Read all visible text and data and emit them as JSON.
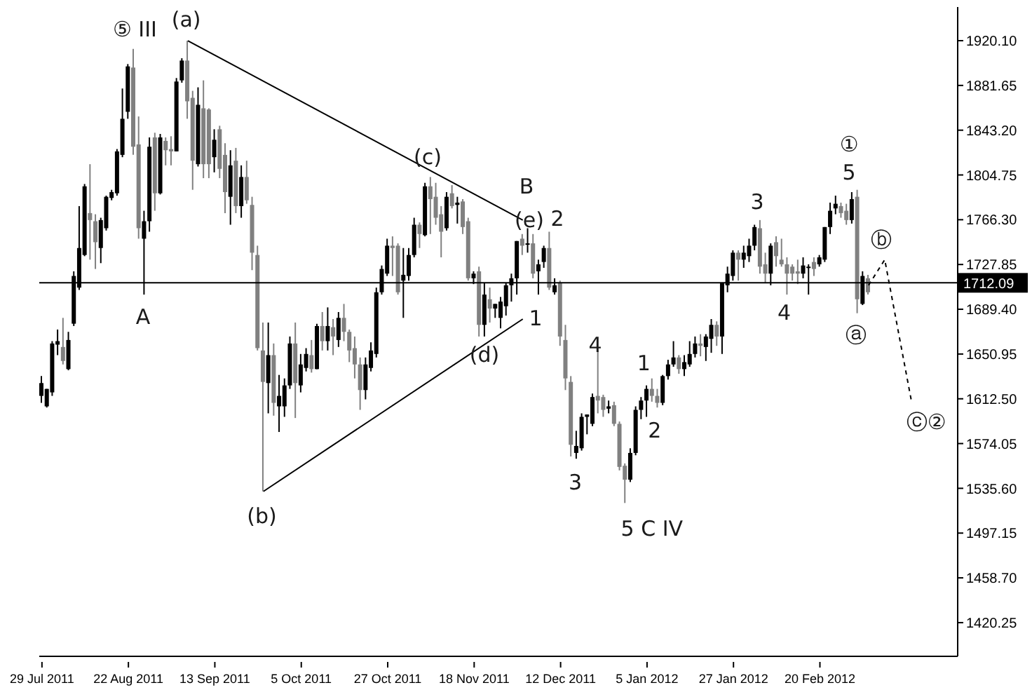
{
  "chart_data": {
    "type": "candlestick",
    "categories": [
      "29 Jul 2011",
      null,
      null,
      null,
      null,
      null,
      null,
      null,
      null,
      null,
      null,
      null,
      null,
      null,
      null,
      null,
      "22 Aug 2011",
      null,
      null,
      null,
      null,
      null,
      null,
      null,
      null,
      null,
      null,
      null,
      null,
      null,
      null,
      null,
      "13 Sep 2011",
      null,
      null,
      null,
      null,
      null,
      null,
      null,
      null,
      null,
      null,
      null,
      null,
      null,
      null,
      null,
      "5 Oct 2011",
      null,
      null,
      null,
      null,
      null,
      null,
      null,
      null,
      null,
      null,
      null,
      null,
      null,
      null,
      null,
      "27 Oct 2011",
      null,
      null,
      null,
      null,
      null,
      null,
      null,
      null,
      null,
      null,
      null,
      null,
      null,
      null,
      null,
      "18 Nov 2011",
      null,
      null,
      null,
      null,
      null,
      null,
      null,
      null,
      null,
      null,
      null,
      null,
      null,
      null,
      null,
      "12 Dec 2011",
      null,
      null,
      null,
      null,
      null,
      null,
      null,
      null,
      null,
      null,
      null,
      null,
      null,
      null,
      null,
      "5 Jan 2012",
      null,
      null,
      null,
      null,
      null,
      null,
      null,
      null,
      null,
      null,
      null,
      null,
      null,
      null,
      null,
      "27 Jan 2012",
      null,
      null,
      null,
      null,
      null,
      null,
      null,
      null,
      null,
      null,
      null,
      null,
      null,
      null,
      null,
      "20 Feb 2012",
      null,
      null,
      null,
      null,
      null,
      null,
      null,
      null,
      null,
      null,
      null,
      null,
      null,
      null,
      null,
      null,
      null,
      null,
      null,
      null,
      null,
      null,
      null,
      null,
      null
    ],
    "ohlc": [
      [
        1615,
        1632,
        1609,
        1626
      ],
      [
        1606,
        1621,
        1605,
        1621
      ],
      [
        1618,
        1662,
        1615,
        1660
      ],
      [
        1659,
        1672,
        1650,
        1662
      ],
      [
        1657,
        1682,
        1642,
        1645
      ],
      [
        1638,
        1670,
        1637,
        1663
      ],
      [
        1677,
        1722,
        1675,
        1718
      ],
      [
        1708,
        1778,
        1706,
        1742
      ],
      [
        1736,
        1797,
        1735,
        1795
      ],
      [
        1772,
        1814,
        1732,
        1766
      ],
      [
        1765,
        1771,
        1724,
        1747
      ],
      [
        1742,
        1768,
        1729,
        1766
      ],
      [
        1759,
        1787,
        1757,
        1786
      ],
      [
        1785,
        1792,
        1783,
        1790
      ],
      [
        1789,
        1827,
        1787,
        1825
      ],
      [
        1822,
        1879,
        1820,
        1853
      ],
      [
        1859,
        1900,
        1853,
        1898
      ],
      [
        1897,
        1913,
        1822,
        1829
      ],
      [
        1831,
        1855,
        1750,
        1759
      ],
      [
        1750,
        1774,
        1702,
        1765
      ],
      [
        1765,
        1837,
        1756,
        1829
      ],
      [
        1837,
        1841,
        1774,
        1789
      ],
      [
        1789,
        1840,
        1788,
        1837
      ],
      [
        1834,
        1837,
        1813,
        1826
      ],
      [
        1827,
        1838,
        1813,
        1825
      ],
      [
        1825,
        1888,
        1825,
        1885
      ],
      [
        1886,
        1905,
        1884,
        1903
      ],
      [
        1903,
        1920,
        1853,
        1868
      ],
      [
        1871,
        1877,
        1792,
        1817
      ],
      [
        1814,
        1880,
        1812,
        1865
      ],
      [
        1862,
        1886,
        1802,
        1814
      ],
      [
        1861,
        1862,
        1802,
        1814
      ],
      [
        1820,
        1844,
        1807,
        1835
      ],
      [
        1844,
        1847,
        1802,
        1810
      ],
      [
        1822,
        1832,
        1772,
        1790
      ],
      [
        1786,
        1826,
        1762,
        1813
      ],
      [
        1817,
        1828,
        1772,
        1778
      ],
      [
        1778,
        1813,
        1768,
        1803
      ],
      [
        1803,
        1817,
        1780,
        1783
      ],
      [
        1779,
        1786,
        1723,
        1738
      ],
      [
        1736,
        1744,
        1654,
        1656
      ],
      [
        1654,
        1678,
        1533,
        1627
      ],
      [
        1626,
        1678,
        1600,
        1650
      ],
      [
        1650,
        1660,
        1598,
        1609
      ],
      [
        1606,
        1633,
        1584,
        1615
      ],
      [
        1606,
        1630,
        1597,
        1624
      ],
      [
        1624,
        1666,
        1621,
        1660
      ],
      [
        1660,
        1678,
        1596,
        1626
      ],
      [
        1624,
        1651,
        1618,
        1642
      ],
      [
        1639,
        1656,
        1636,
        1651
      ],
      [
        1650,
        1663,
        1635,
        1638
      ],
      [
        1638,
        1677,
        1638,
        1675
      ],
      [
        1675,
        1687,
        1654,
        1662
      ],
      [
        1662,
        1691,
        1654,
        1675
      ],
      [
        1674,
        1681,
        1650,
        1666
      ],
      [
        1663,
        1687,
        1657,
        1682
      ],
      [
        1682,
        1694,
        1662,
        1670
      ],
      [
        1670,
        1672,
        1644,
        1654
      ],
      [
        1656,
        1666,
        1630,
        1642
      ],
      [
        1642,
        1648,
        1603,
        1620
      ],
      [
        1620,
        1648,
        1612,
        1642
      ],
      [
        1639,
        1661,
        1636,
        1654
      ],
      [
        1651,
        1708,
        1648,
        1704
      ],
      [
        1704,
        1727,
        1702,
        1724
      ],
      [
        1720,
        1750,
        1718,
        1744
      ],
      [
        1744,
        1752,
        1718,
        1742
      ],
      [
        1744,
        1746,
        1702,
        1704
      ],
      [
        1714,
        1742,
        1682,
        1719
      ],
      [
        1718,
        1742,
        1714,
        1736
      ],
      [
        1736,
        1768,
        1734,
        1762
      ],
      [
        1762,
        1764,
        1742,
        1754
      ],
      [
        1753,
        1798,
        1752,
        1795
      ],
      [
        1795,
        1803,
        1754,
        1784
      ],
      [
        1786,
        1798,
        1762,
        1768
      ],
      [
        1771,
        1778,
        1734,
        1756
      ],
      [
        1759,
        1790,
        1757,
        1786
      ],
      [
        1789,
        1796,
        1776,
        1778
      ],
      [
        1779,
        1786,
        1763,
        1781
      ],
      [
        1782,
        1784,
        1754,
        1760
      ],
      [
        1765,
        1768,
        1714,
        1716
      ],
      [
        1716,
        1722,
        1711,
        1720
      ],
      [
        1722,
        1726,
        1666,
        1676
      ],
      [
        1676,
        1712,
        1666,
        1702
      ],
      [
        1698,
        1708,
        1678,
        1690
      ],
      [
        1690,
        1694,
        1682,
        1694
      ],
      [
        1682,
        1700,
        1673,
        1696
      ],
      [
        1692,
        1712,
        1684,
        1710
      ],
      [
        1710,
        1720,
        1696,
        1716
      ],
      [
        1716,
        1748,
        1702,
        1748
      ],
      [
        1750,
        1754,
        1736,
        1744
      ],
      [
        1745,
        1759,
        1738,
        1746
      ],
      [
        1746,
        1754,
        1716,
        1720
      ],
      [
        1722,
        1732,
        1702,
        1728
      ],
      [
        1730,
        1744,
        1725,
        1742
      ],
      [
        1742,
        1756,
        1706,
        1708
      ],
      [
        1704,
        1716,
        1702,
        1710
      ],
      [
        1712,
        1714,
        1658,
        1666
      ],
      [
        1663,
        1676,
        1620,
        1630
      ],
      [
        1627,
        1632,
        1563,
        1573
      ],
      [
        1566,
        1585,
        1561,
        1572
      ],
      [
        1570,
        1600,
        1568,
        1597
      ],
      [
        1597,
        1599,
        1582,
        1599
      ],
      [
        1591,
        1617,
        1589,
        1614
      ],
      [
        1615,
        1654,
        1600,
        1611
      ],
      [
        1614,
        1616,
        1597,
        1603
      ],
      [
        1604,
        1611,
        1600,
        1606
      ],
      [
        1607,
        1610,
        1589,
        1591
      ],
      [
        1591,
        1593,
        1551,
        1554
      ],
      [
        1555,
        1557,
        1523,
        1543
      ],
      [
        1543,
        1570,
        1541,
        1566
      ],
      [
        1566,
        1606,
        1564,
        1603
      ],
      [
        1603,
        1614,
        1595,
        1611
      ],
      [
        1611,
        1624,
        1597,
        1621
      ],
      [
        1621,
        1630,
        1610,
        1615
      ],
      [
        1615,
        1621,
        1605,
        1609
      ],
      [
        1609,
        1633,
        1607,
        1632
      ],
      [
        1632,
        1646,
        1629,
        1642
      ],
      [
        1642,
        1662,
        1640,
        1648
      ],
      [
        1648,
        1650,
        1634,
        1638
      ],
      [
        1638,
        1650,
        1632,
        1644
      ],
      [
        1642,
        1662,
        1640,
        1651
      ],
      [
        1651,
        1666,
        1648,
        1660
      ],
      [
        1660,
        1668,
        1649,
        1658
      ],
      [
        1657,
        1668,
        1645,
        1666
      ],
      [
        1664,
        1681,
        1652,
        1676
      ],
      [
        1676,
        1679,
        1658,
        1666
      ],
      [
        1666,
        1712,
        1651,
        1712
      ],
      [
        1710,
        1726,
        1704,
        1720
      ],
      [
        1718,
        1740,
        1714,
        1738
      ],
      [
        1738,
        1740,
        1714,
        1732
      ],
      [
        1732,
        1744,
        1725,
        1738
      ],
      [
        1735,
        1750,
        1730,
        1744
      ],
      [
        1744,
        1762,
        1740,
        1760
      ],
      [
        1759,
        1766,
        1720,
        1726
      ],
      [
        1728,
        1738,
        1712,
        1720
      ],
      [
        1720,
        1746,
        1710,
        1744
      ],
      [
        1747,
        1752,
        1726,
        1735
      ],
      [
        1732,
        1750,
        1726,
        1728
      ],
      [
        1728,
        1734,
        1702,
        1720
      ],
      [
        1726,
        1728,
        1714,
        1720
      ],
      [
        1722,
        1732,
        1711,
        1720
      ],
      [
        1720,
        1734,
        1716,
        1727
      ],
      [
        1725,
        1728,
        1702,
        1726
      ],
      [
        1730,
        1734,
        1718,
        1724
      ],
      [
        1728,
        1736,
        1726,
        1734
      ],
      [
        1732,
        1760,
        1730,
        1760
      ],
      [
        1760,
        1781,
        1754,
        1774
      ],
      [
        1776,
        1787,
        1771,
        1780
      ],
      [
        1778,
        1781,
        1768,
        1772
      ],
      [
        1774,
        1780,
        1762,
        1766
      ],
      [
        1766,
        1790,
        1763,
        1784
      ],
      [
        1786,
        1792,
        1686,
        1698
      ],
      [
        1694,
        1722,
        1693,
        1718
      ],
      [
        1716,
        1719,
        1702,
        1704
      ],
      null,
      null,
      null,
      null,
      null,
      null,
      null,
      null,
      null,
      null,
      null,
      null,
      null,
      null,
      null,
      null
    ],
    "series": [
      {
        "type": "line",
        "color": "#000000",
        "values": [
          null,
          null,
          null,
          null,
          null,
          null,
          null,
          null,
          null,
          null,
          null,
          null,
          null,
          null,
          null,
          null,
          null,
          null,
          null,
          null,
          null,
          null,
          null,
          null,
          null,
          null,
          null,
          1920,
          null,
          null,
          null,
          null,
          null,
          null,
          null,
          null,
          null,
          null,
          null,
          null,
          null,
          null,
          null,
          null,
          null,
          null,
          null,
          null,
          null,
          null,
          null,
          null,
          null,
          null,
          null,
          null,
          null,
          null,
          null,
          null,
          null,
          null,
          null,
          null,
          null,
          null,
          null,
          null,
          null,
          null,
          null,
          null,
          null,
          null,
          null,
          null,
          null,
          null,
          null,
          null,
          null,
          null,
          null,
          null,
          null,
          null,
          null,
          null,
          null,
          1766,
          null,
          null,
          null,
          null,
          null,
          null,
          null,
          null,
          null,
          null,
          null,
          null,
          null,
          null,
          null,
          null,
          null,
          null,
          null,
          null,
          null,
          null,
          null,
          null,
          null,
          null,
          null,
          null,
          null,
          null,
          null,
          null,
          null,
          null,
          null,
          null,
          null,
          null,
          null,
          null,
          null,
          null,
          null,
          null,
          null,
          null,
          null,
          null,
          null,
          null,
          null,
          null,
          null,
          null,
          null,
          null,
          null,
          null,
          null,
          null,
          null,
          null,
          null,
          null,
          null,
          null,
          null,
          null,
          null,
          null,
          null,
          null,
          null,
          null,
          null,
          null,
          null,
          null,
          null,
          null
        ]
      },
      {
        "type": "line",
        "color": "#000000",
        "values": [
          null,
          null,
          null,
          null,
          null,
          null,
          null,
          null,
          null,
          null,
          null,
          null,
          null,
          null,
          null,
          null,
          null,
          null,
          null,
          null,
          null,
          null,
          null,
          null,
          null,
          null,
          null,
          null,
          null,
          null,
          null,
          null,
          null,
          null,
          null,
          null,
          null,
          null,
          null,
          null,
          null,
          1533,
          null,
          null,
          null,
          null,
          null,
          null,
          null,
          null,
          null,
          null,
          null,
          null,
          null,
          null,
          null,
          null,
          null,
          null,
          null,
          null,
          null,
          null,
          null,
          null,
          null,
          null,
          null,
          null,
          null,
          null,
          null,
          null,
          null,
          null,
          null,
          null,
          null,
          null,
          null,
          null,
          null,
          null,
          null,
          null,
          null,
          null,
          null,
          1681,
          null,
          null,
          null,
          null,
          null,
          null,
          null,
          null,
          null,
          null,
          null,
          null,
          null,
          null,
          null,
          null,
          null,
          null,
          null,
          null,
          null,
          null,
          null,
          null,
          null,
          null,
          null,
          null,
          null,
          null,
          null,
          null,
          null,
          null,
          null,
          null,
          null,
          null,
          null,
          null,
          null,
          null,
          null,
          null,
          null,
          null,
          null,
          null,
          null,
          null,
          null,
          null,
          null,
          null,
          null,
          null,
          null,
          null,
          null,
          null,
          null,
          null,
          null,
          null,
          null,
          null,
          null,
          null,
          null,
          null,
          null,
          null,
          null,
          null,
          null,
          null,
          null,
          null,
          null,
          null
        ]
      },
      {
        "type": "line",
        "color": "#000000",
        "line_style": "dashed",
        "values": [
          null,
          null,
          null,
          null,
          null,
          null,
          null,
          null,
          null,
          null,
          null,
          null,
          null,
          null,
          null,
          null,
          null,
          null,
          null,
          null,
          null,
          null,
          null,
          null,
          null,
          null,
          null,
          null,
          null,
          null,
          null,
          null,
          null,
          null,
          null,
          null,
          null,
          null,
          null,
          null,
          null,
          null,
          null,
          null,
          null,
          null,
          null,
          null,
          null,
          null,
          null,
          null,
          null,
          null,
          null,
          null,
          null,
          null,
          null,
          null,
          null,
          null,
          null,
          null,
          null,
          null,
          null,
          null,
          null,
          null,
          null,
          null,
          null,
          null,
          null,
          null,
          null,
          null,
          null,
          null,
          null,
          null,
          null,
          null,
          null,
          null,
          null,
          null,
          null,
          null,
          null,
          null,
          null,
          null,
          null,
          null,
          null,
          null,
          null,
          null,
          null,
          null,
          null,
          null,
          null,
          null,
          null,
          null,
          null,
          null,
          null,
          null,
          null,
          null,
          null,
          null,
          null,
          null,
          null,
          null,
          null,
          null,
          null,
          null,
          null,
          null,
          null,
          null,
          null,
          null,
          null,
          null,
          null,
          null,
          null,
          null,
          null,
          null,
          null,
          null,
          null,
          null,
          null,
          null,
          null,
          null,
          null,
          null,
          null,
          null,
          null,
          null,
          null,
          1710,
          null,
          null,
          1732,
          null,
          null,
          null,
          null,
          1609,
          null,
          null,
          null,
          null,
          null,
          null,
          null,
          null
        ]
      }
    ],
    "ylim": [
      1391.3,
      1949.0
    ],
    "yticks": [
      {
        "value": 1420.25,
        "label": "1420.25"
      },
      {
        "value": 1458.7,
        "label": "1458.70"
      },
      {
        "value": 1497.15,
        "label": "1497.15"
      },
      {
        "value": 1535.6,
        "label": "1535.60"
      },
      {
        "value": 1574.05,
        "label": "1574.05"
      },
      {
        "value": 1612.5,
        "label": "1612.50"
      },
      {
        "value": 1650.95,
        "label": "1650.95"
      },
      {
        "value": 1689.4,
        "label": "1689.40"
      },
      {
        "value": 1727.85,
        "label": "1727.85"
      },
      {
        "value": 1766.3,
        "label": "1766.30"
      },
      {
        "value": 1804.75,
        "label": "1804.75"
      },
      {
        "value": 1843.2,
        "label": "1843.20"
      },
      {
        "value": 1881.65,
        "label": "1881.65"
      },
      {
        "value": 1920.1,
        "label": "1920.10"
      }
    ],
    "ref_lines": [
      {
        "axis": "y",
        "value": 1712.09,
        "label": "1712.09",
        "color": "#000000"
      }
    ],
    "annotations": [
      "⑤ III",
      "(a)",
      "A",
      "(b)",
      "(c)",
      "B",
      "(e)",
      "2",
      "(d)",
      "1",
      "4",
      "3",
      "1",
      "2",
      "5 C IV",
      "3",
      "4",
      "①",
      "5",
      "ⓑ",
      "ⓐ",
      "ⓒ②"
    ]
  }
}
